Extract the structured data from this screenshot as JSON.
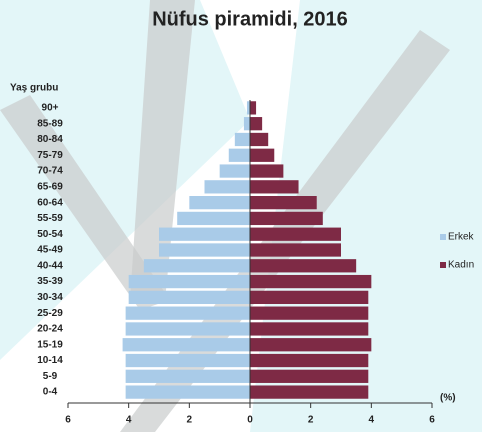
{
  "chart_data": {
    "type": "pyramid",
    "title": "Nüfus piramidi, 2016",
    "y_label": "Yaş grubu",
    "x_label": "(%)",
    "categories": [
      "0-4",
      "5-9",
      "10-14",
      "15-19",
      "20-24",
      "25-29",
      "30-34",
      "35-39",
      "40-44",
      "45-49",
      "50-54",
      "55-59",
      "60-64",
      "65-69",
      "70-74",
      "75-79",
      "80-84",
      "85-89",
      "90+"
    ],
    "series": [
      {
        "name": "Erkek",
        "color": "#a9cbe8",
        "values": [
          4.1,
          4.1,
          4.1,
          4.2,
          4.1,
          4.1,
          4.0,
          4.0,
          3.5,
          3.0,
          3.0,
          2.4,
          2.0,
          1.5,
          1.0,
          0.7,
          0.5,
          0.2,
          0.1
        ]
      },
      {
        "name": "Kadın",
        "color": "#7e2a45",
        "values": [
          3.9,
          3.9,
          3.9,
          4.0,
          3.9,
          3.9,
          3.9,
          4.0,
          3.5,
          3.0,
          3.0,
          2.4,
          2.2,
          1.6,
          1.1,
          0.8,
          0.6,
          0.4,
          0.2
        ]
      }
    ],
    "xlim": [
      -6,
      6
    ],
    "xticks": [
      {
        "value": -6,
        "label": "6"
      },
      {
        "value": -4,
        "label": "4"
      },
      {
        "value": -2,
        "label": "2"
      },
      0,
      2,
      4,
      6
    ],
    "legend": "right"
  }
}
